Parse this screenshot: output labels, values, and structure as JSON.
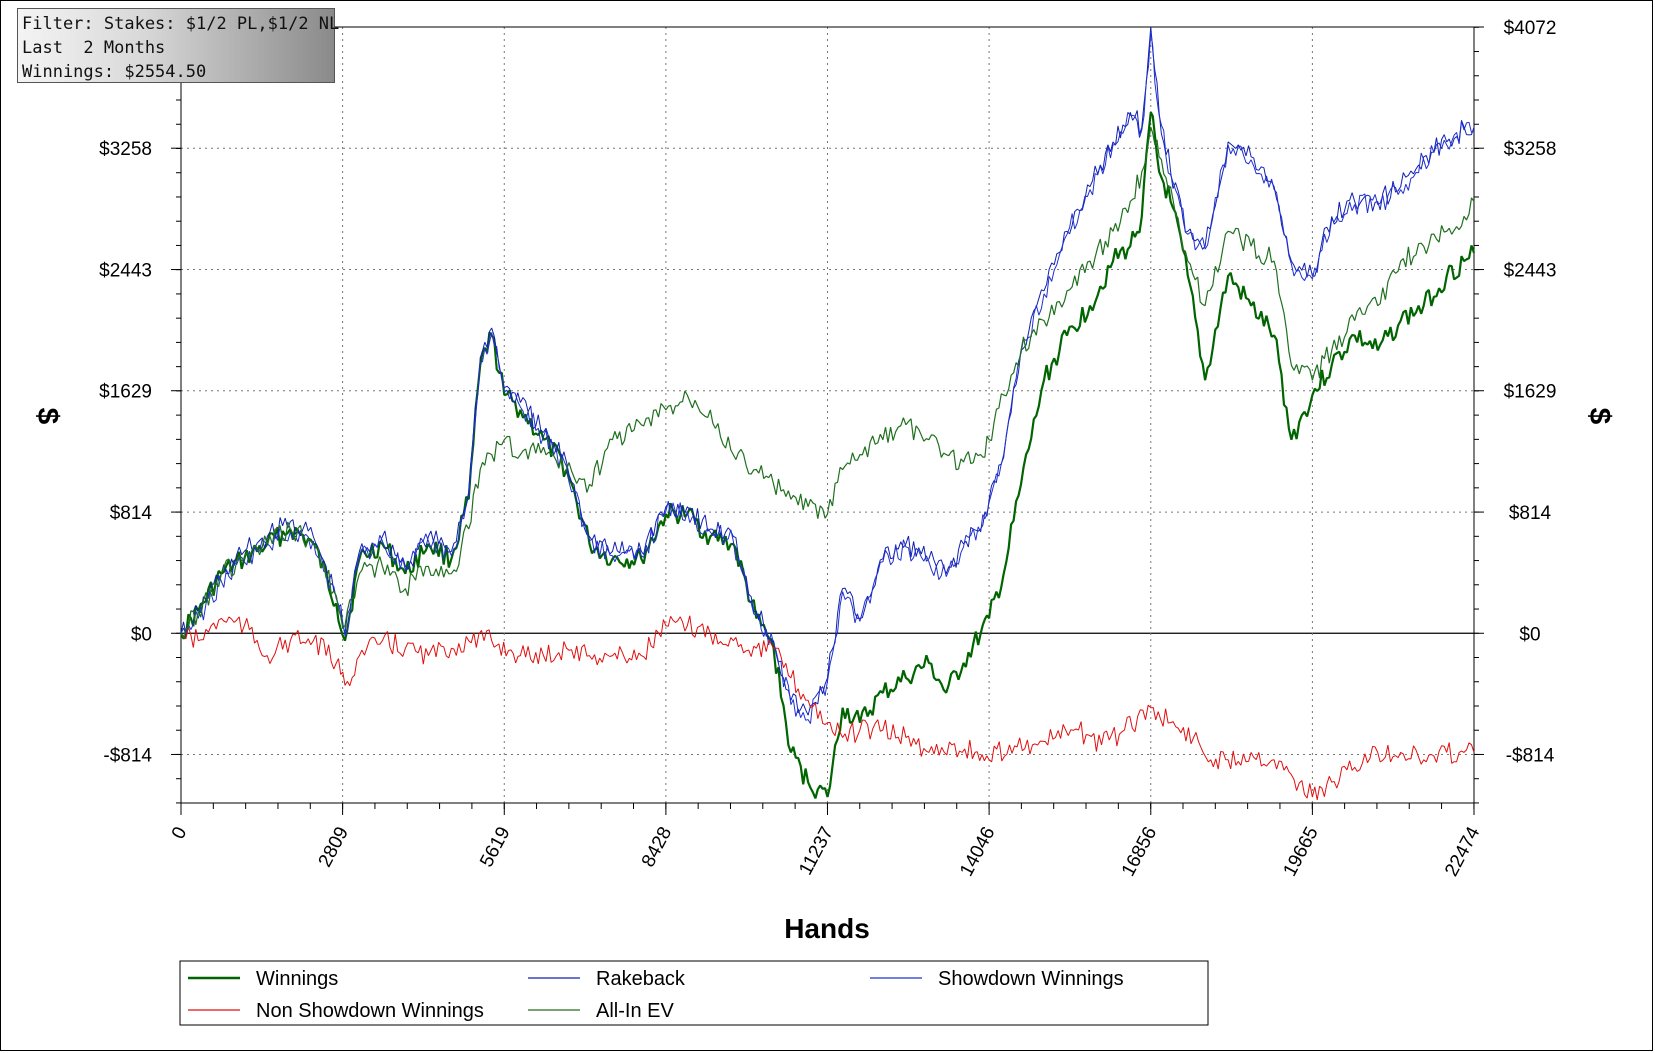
{
  "info_box": {
    "filter": "Filter: Stakes: $1/2 PL,$1/2 NL",
    "period": "Last  2 Months",
    "winnings": "Winnings: $2554.50"
  },
  "chart_data": {
    "type": "line",
    "xlabel": "Hands",
    "ylabel": "$",
    "xlim": [
      0,
      22474
    ],
    "ylim": [
      -1140,
      4072
    ],
    "x_ticks": [
      0,
      2809,
      5619,
      8428,
      11237,
      14046,
      16856,
      19665,
      22474
    ],
    "y_ticks": [
      -814,
      0,
      814,
      1629,
      2443,
      3258,
      4072
    ],
    "y_tick_labels": [
      "-$814",
      "$0",
      "$814",
      "$1629",
      "$2443",
      "$3258",
      "$4072"
    ],
    "grid": true,
    "legend_position": "bottom",
    "series": [
      {
        "name": "Winnings",
        "color": "#006400",
        "x": [
          0,
          300,
          700,
          1100,
          1500,
          1900,
          2300,
          2700,
          2850,
          3100,
          3500,
          3900,
          4300,
          4700,
          5000,
          5200,
          5400,
          5619,
          5900,
          6300,
          6700,
          7100,
          7500,
          8000,
          8428,
          8800,
          9200,
          9600,
          10000,
          10300,
          10600,
          10900,
          11237,
          11500,
          11800,
          12200,
          12600,
          13000,
          13300,
          13600,
          13900,
          14046,
          14300,
          14600,
          15000,
          15400,
          15800,
          16200,
          16500,
          16700,
          16856,
          17000,
          17200,
          17500,
          17800,
          18200,
          18600,
          19000,
          19300,
          19665,
          20000,
          20400,
          20800,
          21200,
          21600,
          22000,
          22300,
          22474
        ],
        "y": [
          0,
          150,
          400,
          500,
          600,
          700,
          600,
          200,
          -50,
          500,
          600,
          400,
          600,
          500,
          900,
          1800,
          2000,
          1600,
          1500,
          1300,
          1100,
          600,
          500,
          500,
          800,
          800,
          650,
          600,
          100,
          -100,
          -800,
          -1000,
          -1100,
          -500,
          -600,
          -400,
          -300,
          -200,
          -400,
          -200,
          0,
          100,
          400,
          1000,
          1700,
          2000,
          2200,
          2500,
          2600,
          2800,
          3500,
          3100,
          2900,
          2400,
          1700,
          2400,
          2200,
          2000,
          1300,
          1600,
          1800,
          2000,
          1900,
          2100,
          2200,
          2400,
          2500,
          2554.5
        ]
      },
      {
        "name": "Rakeback",
        "color": "#1020b0",
        "x": [
          0,
          300,
          700,
          1100,
          1500,
          1900,
          2300,
          2700,
          2850,
          3100,
          3500,
          3900,
          4300,
          4700,
          5000,
          5200,
          5400,
          5619,
          5900,
          6300,
          6700,
          7100,
          7500,
          8000,
          8428,
          8800,
          9200,
          9600,
          10000,
          10300,
          10600,
          10900,
          11237,
          11500,
          11800,
          12200,
          12600,
          13000,
          13300,
          13600,
          13900,
          14046,
          14300,
          14600,
          15000,
          15400,
          15800,
          16200,
          16500,
          16700,
          16856,
          17000,
          17200,
          17500,
          17800,
          18200,
          18600,
          19000,
          19300,
          19665,
          20000,
          20400,
          20800,
          21200,
          21600,
          22000,
          22300,
          22474
        ],
        "y": [
          0,
          150,
          400,
          550,
          650,
          750,
          650,
          250,
          0,
          550,
          650,
          450,
          650,
          550,
          950,
          1850,
          2050,
          1650,
          1550,
          1350,
          1150,
          650,
          550,
          550,
          850,
          850,
          700,
          650,
          150,
          -50,
          -450,
          -550,
          -300,
          300,
          100,
          500,
          600,
          500,
          400,
          600,
          700,
          900,
          1200,
          1900,
          2300,
          2700,
          3000,
          3300,
          3500,
          3400,
          4072,
          3500,
          3100,
          2700,
          2600,
          3300,
          3200,
          3000,
          2500,
          2400,
          2800,
          2900,
          2900,
          3000,
          3200,
          3300,
          3400,
          3400
        ]
      },
      {
        "name": "Showdown Winnings",
        "color": "#2030d0",
        "x": [
          0,
          300,
          700,
          1100,
          1500,
          1900,
          2300,
          2700,
          2850,
          3100,
          3500,
          3900,
          4300,
          4700,
          5000,
          5200,
          5400,
          5619,
          5900,
          6300,
          6700,
          7100,
          7500,
          8000,
          8428,
          8800,
          9200,
          9600,
          10000,
          10300,
          10600,
          10900,
          11237,
          11500,
          11800,
          12200,
          12600,
          13000,
          13300,
          13600,
          13900,
          14046,
          14300,
          14600,
          15000,
          15400,
          15800,
          16200,
          16500,
          16700,
          16856,
          17000,
          17200,
          17500,
          17800,
          18200,
          18600,
          19000,
          19300,
          19665,
          20000,
          20400,
          20800,
          21200,
          21600,
          22000,
          22300,
          22474
        ],
        "y": [
          0,
          100,
          350,
          480,
          600,
          680,
          620,
          230,
          -20,
          520,
          620,
          420,
          620,
          520,
          920,
          1820,
          2020,
          1620,
          1520,
          1320,
          1120,
          620,
          520,
          520,
          820,
          820,
          680,
          620,
          120,
          -70,
          -480,
          -580,
          -320,
          280,
          80,
          480,
          580,
          480,
          380,
          580,
          680,
          880,
          1180,
          1880,
          2280,
          2680,
          2980,
          3280,
          3480,
          3380,
          4040,
          3480,
          3080,
          2680,
          2580,
          3280,
          3180,
          2980,
          2480,
          2380,
          2780,
          2880,
          2880,
          2980,
          3180,
          3280,
          3380,
          3380
        ]
      },
      {
        "name": "Non Showdown Winnings",
        "color": "#e01010",
        "x": [
          0,
          300,
          700,
          1100,
          1500,
          1900,
          2300,
          2700,
          2850,
          3100,
          3500,
          3900,
          4300,
          4700,
          5000,
          5400,
          5900,
          6300,
          6700,
          7100,
          7500,
          8000,
          8428,
          8800,
          9200,
          9600,
          10000,
          10300,
          10600,
          10900,
          11237,
          11500,
          11800,
          12200,
          12600,
          13000,
          13400,
          13800,
          14046,
          14400,
          14800,
          15200,
          15600,
          16000,
          16400,
          16856,
          17200,
          17600,
          17900,
          18200,
          18600,
          19000,
          19300,
          19665,
          20000,
          20400,
          20800,
          21200,
          21600,
          22000,
          22300,
          22474
        ],
        "y": [
          0,
          -50,
          100,
          50,
          -150,
          -50,
          -50,
          -200,
          -350,
          -150,
          -50,
          -100,
          -150,
          -100,
          -50,
          -50,
          -150,
          -150,
          -100,
          -150,
          -150,
          -150,
          50,
          50,
          0,
          -50,
          -100,
          -100,
          -300,
          -450,
          -600,
          -700,
          -650,
          -650,
          -700,
          -800,
          -750,
          -800,
          -850,
          -750,
          -750,
          -700,
          -650,
          -750,
          -650,
          -500,
          -600,
          -700,
          -850,
          -850,
          -800,
          -850,
          -950,
          -1100,
          -1000,
          -900,
          -800,
          -800,
          -850,
          -800,
          -800,
          -800
        ]
      },
      {
        "name": "All-In EV",
        "color": "#207020",
        "x": [
          0,
          300,
          700,
          1100,
          1500,
          1900,
          2300,
          2700,
          2850,
          3100,
          3500,
          3900,
          4300,
          4700,
          5000,
          5200,
          5400,
          5619,
          5900,
          6300,
          6700,
          7100,
          7500,
          8000,
          8428,
          8800,
          9200,
          9600,
          10000,
          10300,
          10600,
          10900,
          11237,
          11500,
          11800,
          12200,
          12600,
          13000,
          13300,
          13600,
          13900,
          14046,
          14300,
          14600,
          15000,
          15400,
          15800,
          16200,
          16500,
          16700,
          16856,
          17000,
          17200,
          17500,
          17800,
          18200,
          18600,
          19000,
          19300,
          19665,
          20000,
          20400,
          20800,
          21200,
          21600,
          22000,
          22300,
          22474
        ],
        "y": [
          0,
          150,
          400,
          500,
          600,
          700,
          600,
          250,
          50,
          400,
          450,
          300,
          450,
          400,
          700,
          1100,
          1200,
          1300,
          1200,
          1250,
          1100,
          1000,
          1300,
          1400,
          1500,
          1600,
          1500,
          1200,
          1100,
          1000,
          900,
          850,
          800,
          1100,
          1200,
          1300,
          1400,
          1300,
          1200,
          1150,
          1200,
          1300,
          1600,
          1900,
          2100,
          2300,
          2500,
          2700,
          2900,
          3100,
          3400,
          3200,
          3000,
          2500,
          2200,
          2700,
          2600,
          2500,
          1800,
          1700,
          1900,
          2100,
          2200,
          2500,
          2600,
          2700,
          2800,
          2900
        ]
      }
    ]
  }
}
